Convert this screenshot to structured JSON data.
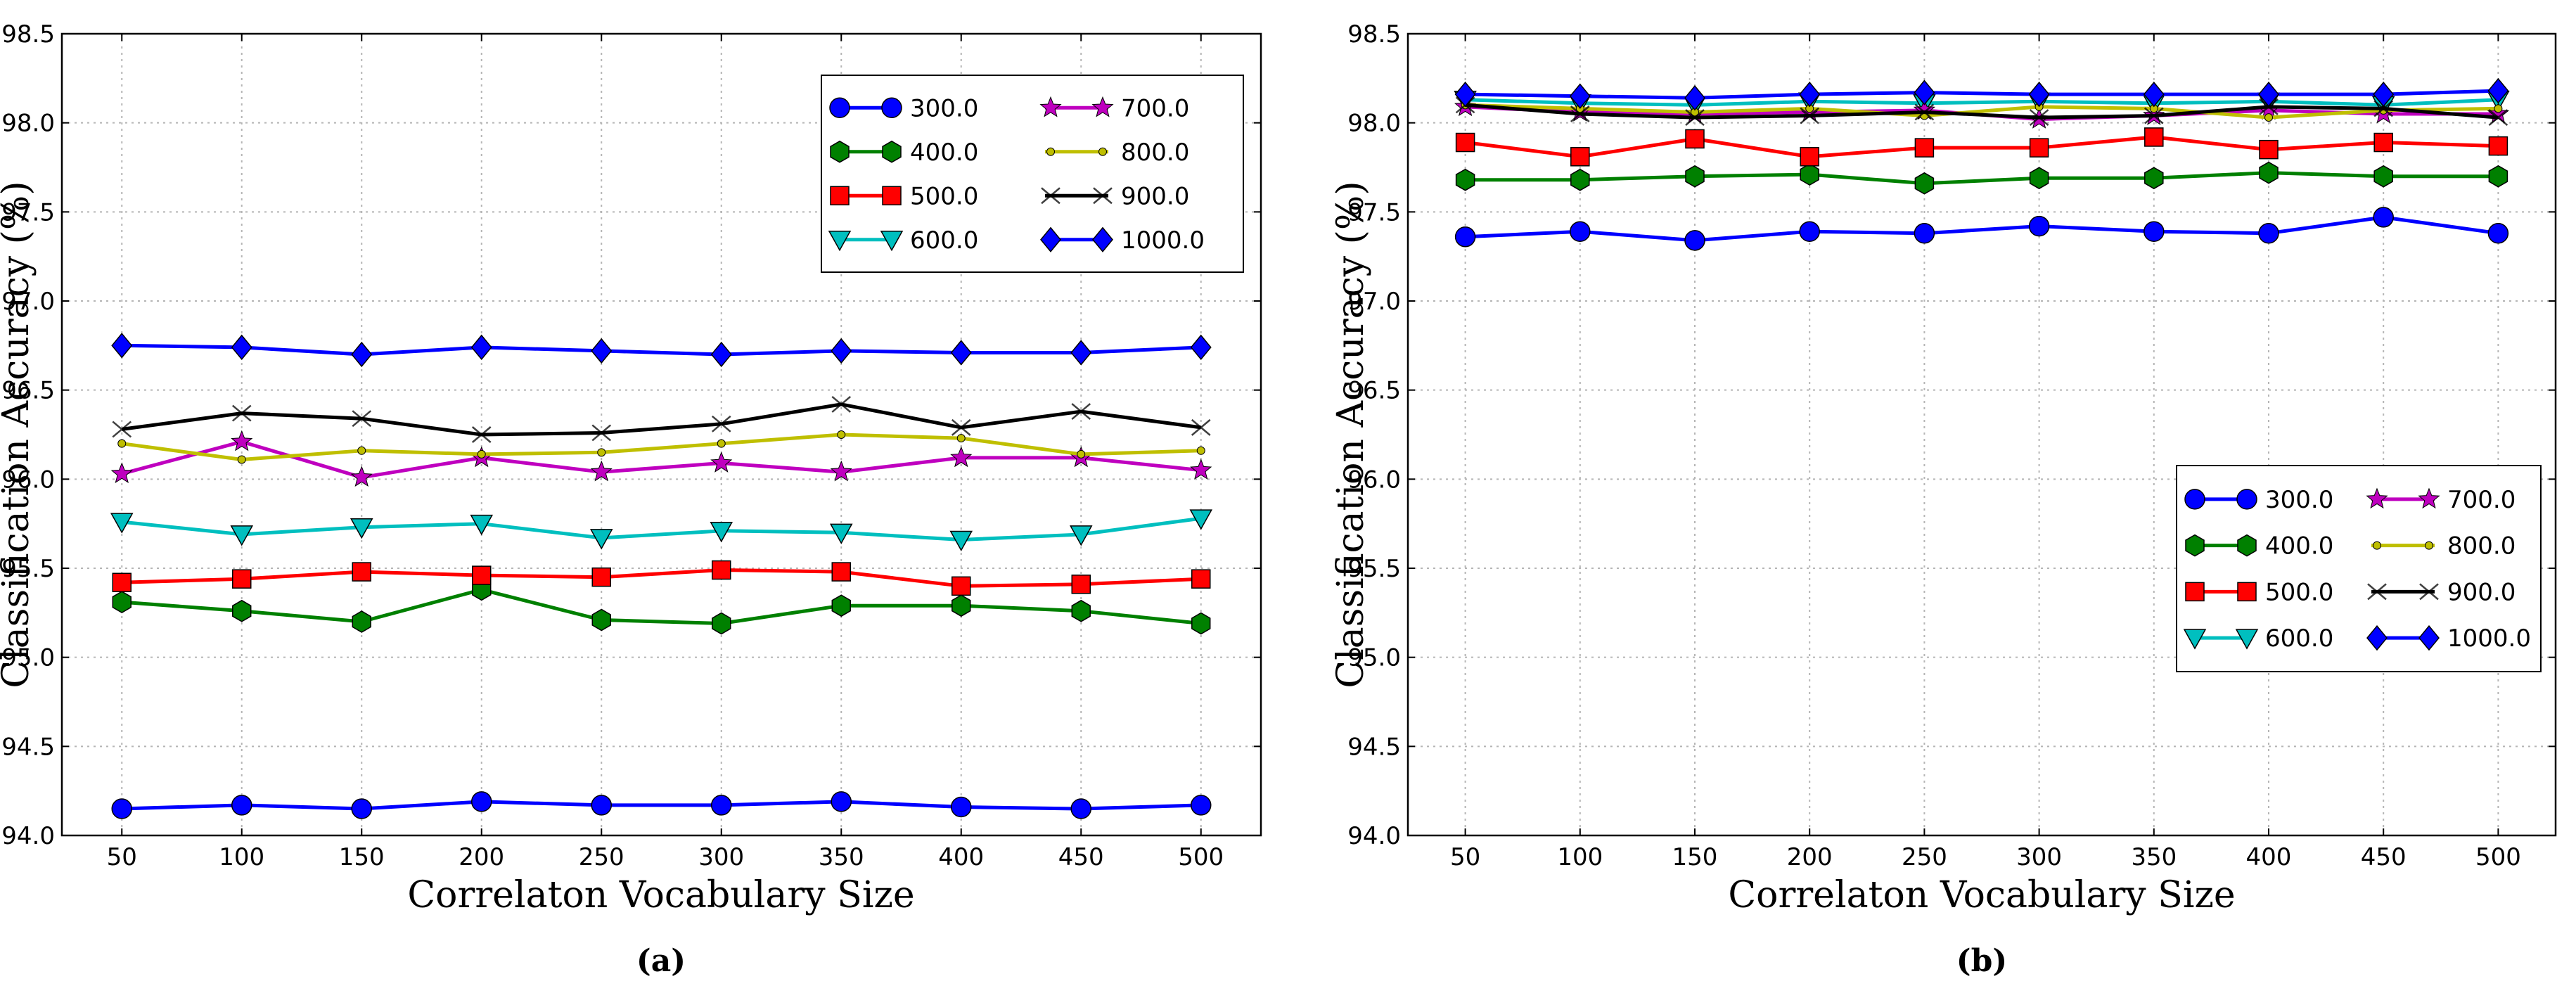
{
  "chart_data": [
    {
      "type": "line",
      "caption": "(a)",
      "xlabel": "Correlaton Vocabulary Size",
      "ylabel": "Classification Accuracy (%)",
      "x": [
        50,
        100,
        150,
        200,
        250,
        300,
        350,
        400,
        450,
        500
      ],
      "xlim": [
        25,
        525
      ],
      "ylim": [
        94.0,
        98.5
      ],
      "yticks": [
        "94.0",
        "94.5",
        "95.0",
        "95.5",
        "96.0",
        "96.5",
        "97.0",
        "97.5",
        "98.0",
        "98.5"
      ],
      "grid": true,
      "legend_position": "upper right",
      "series": [
        {
          "name": "300.0",
          "color": "#0000ff",
          "marker": "circle",
          "values": [
            94.15,
            94.17,
            94.15,
            94.19,
            94.17,
            94.17,
            94.19,
            94.16,
            94.15,
            94.17
          ]
        },
        {
          "name": "400.0",
          "color": "#008000",
          "marker": "hexagon",
          "values": [
            95.31,
            95.26,
            95.2,
            95.38,
            95.21,
            95.19,
            95.29,
            95.29,
            95.26,
            95.19
          ]
        },
        {
          "name": "500.0",
          "color": "#ff0000",
          "marker": "square",
          "values": [
            95.42,
            95.44,
            95.48,
            95.46,
            95.45,
            95.49,
            95.48,
            95.4,
            95.41,
            95.44
          ]
        },
        {
          "name": "600.0",
          "color": "#00bfbf",
          "marker": "triangle-down",
          "values": [
            95.76,
            95.69,
            95.73,
            95.75,
            95.67,
            95.71,
            95.7,
            95.66,
            95.69,
            95.78
          ]
        },
        {
          "name": "700.0",
          "color": "#bf00bf",
          "marker": "star",
          "values": [
            96.03,
            96.21,
            96.01,
            96.12,
            96.04,
            96.09,
            96.04,
            96.12,
            96.12,
            96.05
          ]
        },
        {
          "name": "800.0",
          "color": "#bfbf00",
          "marker": "point",
          "values": [
            96.2,
            96.11,
            96.16,
            96.14,
            96.15,
            96.2,
            96.25,
            96.23,
            96.14,
            96.16
          ]
        },
        {
          "name": "900.0",
          "color": "#000000",
          "marker": "x",
          "values": [
            96.28,
            96.37,
            96.34,
            96.25,
            96.26,
            96.31,
            96.42,
            96.29,
            96.38,
            96.29
          ]
        },
        {
          "name": "1000.0",
          "color": "#0000ff",
          "marker": "diamond",
          "values": [
            96.75,
            96.74,
            96.7,
            96.74,
            96.72,
            96.7,
            96.72,
            96.71,
            96.71,
            96.74
          ]
        }
      ]
    },
    {
      "type": "line",
      "caption": "(b)",
      "xlabel": "Correlaton Vocabulary Size",
      "ylabel": "Classification Accuracy (%)",
      "x": [
        50,
        100,
        150,
        200,
        250,
        300,
        350,
        400,
        450,
        500
      ],
      "xlim": [
        25,
        525
      ],
      "ylim": [
        94.0,
        98.5
      ],
      "yticks": [
        "94.0",
        "94.5",
        "95.0",
        "95.5",
        "96.0",
        "96.5",
        "97.0",
        "97.5",
        "98.0",
        "98.5"
      ],
      "grid": true,
      "legend_position": "lower right",
      "series": [
        {
          "name": "300.0",
          "color": "#0000ff",
          "marker": "circle",
          "values": [
            97.36,
            97.39,
            97.34,
            97.39,
            97.38,
            97.42,
            97.39,
            97.38,
            97.47,
            97.38
          ]
        },
        {
          "name": "400.0",
          "color": "#008000",
          "marker": "hexagon",
          "values": [
            97.68,
            97.68,
            97.7,
            97.71,
            97.66,
            97.69,
            97.69,
            97.72,
            97.7,
            97.7
          ]
        },
        {
          "name": "500.0",
          "color": "#ff0000",
          "marker": "square",
          "values": [
            97.89,
            97.81,
            97.91,
            97.81,
            97.86,
            97.86,
            97.92,
            97.85,
            97.89,
            97.87
          ]
        },
        {
          "name": "600.0",
          "color": "#00bfbf",
          "marker": "triangle-down",
          "values": [
            98.13,
            98.11,
            98.1,
            98.12,
            98.11,
            98.12,
            98.11,
            98.12,
            98.1,
            98.13
          ]
        },
        {
          "name": "700.0",
          "color": "#bf00bf",
          "marker": "star",
          "values": [
            98.09,
            98.06,
            98.05,
            98.06,
            98.07,
            98.02,
            98.04,
            98.07,
            98.05,
            98.05
          ]
        },
        {
          "name": "800.0",
          "color": "#bfbf00",
          "marker": "point",
          "values": [
            98.1,
            98.08,
            98.06,
            98.08,
            98.04,
            98.09,
            98.08,
            98.03,
            98.07,
            98.08
          ]
        },
        {
          "name": "900.0",
          "color": "#000000",
          "marker": "x",
          "values": [
            98.1,
            98.05,
            98.03,
            98.04,
            98.06,
            98.03,
            98.04,
            98.09,
            98.08,
            98.03
          ]
        },
        {
          "name": "1000.0",
          "color": "#0000ff",
          "marker": "diamond",
          "values": [
            98.16,
            98.15,
            98.14,
            98.16,
            98.17,
            98.16,
            98.16,
            98.16,
            98.16,
            98.18
          ]
        }
      ]
    }
  ]
}
